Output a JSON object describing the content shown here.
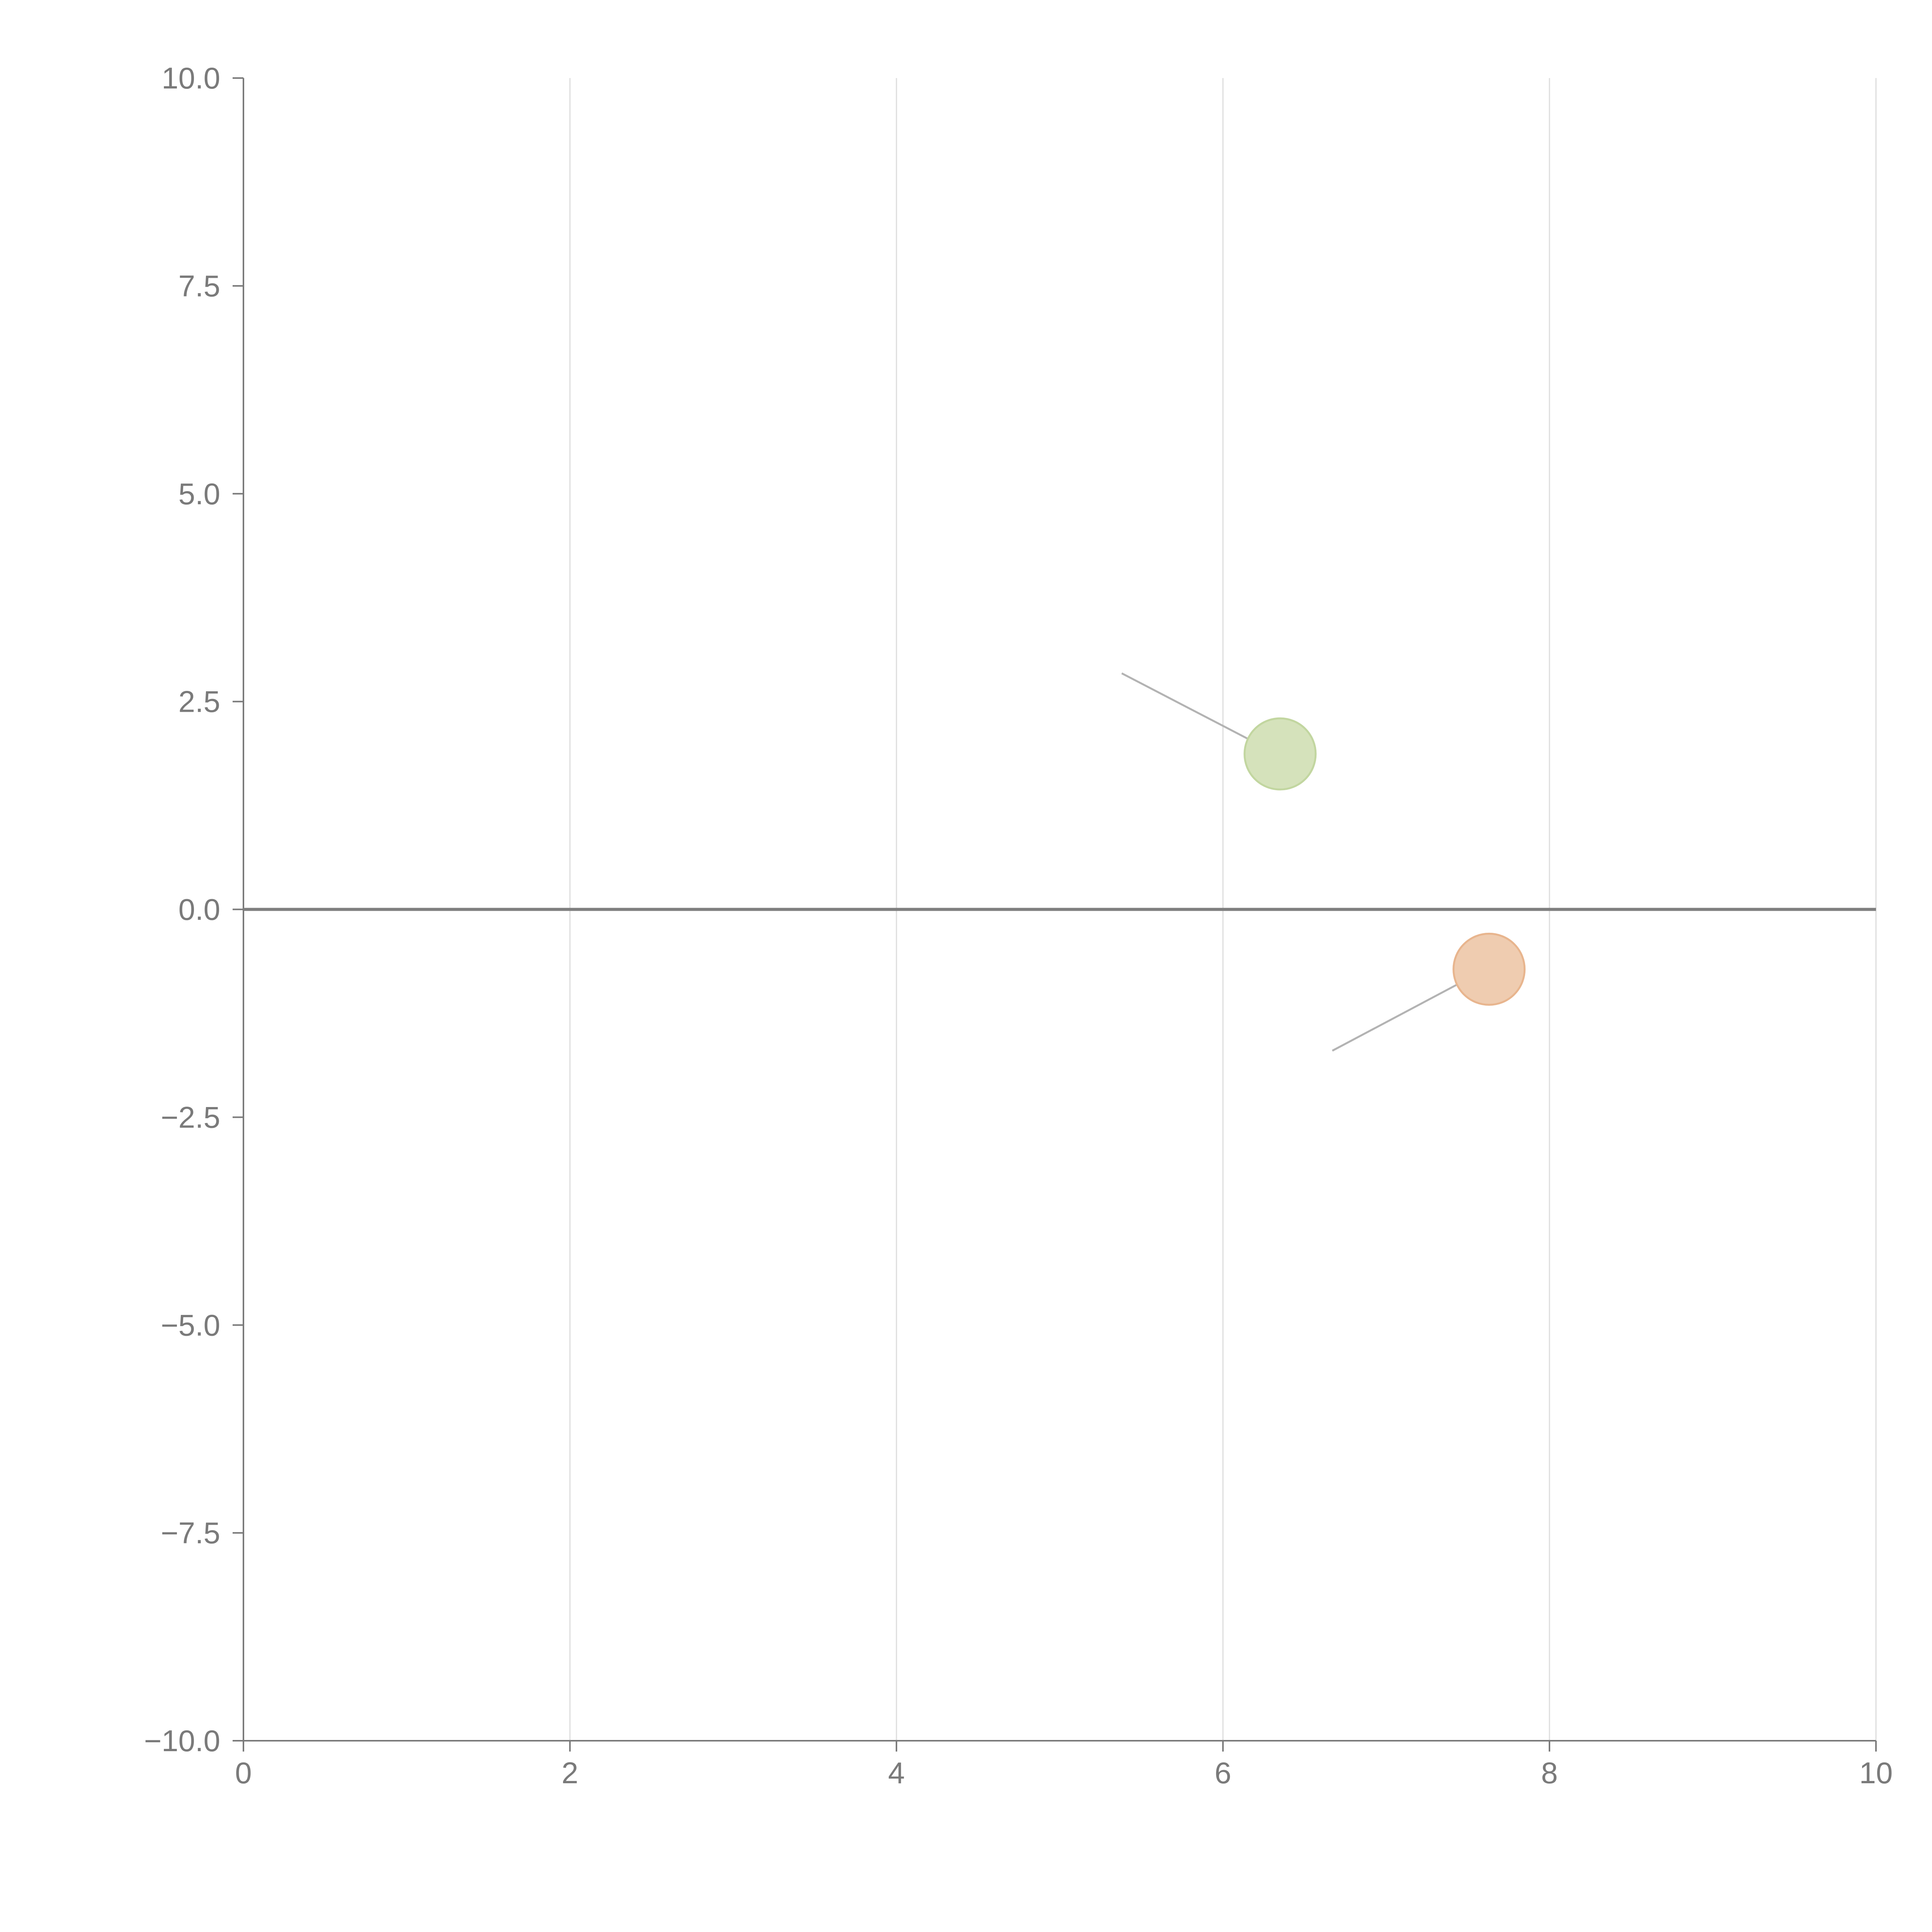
{
  "chart_data": {
    "type": "scatter",
    "title": "",
    "xlabel": "",
    "ylabel": "",
    "xlim": [
      0,
      10
    ],
    "ylim": [
      -10,
      10
    ],
    "x_ticks": [
      0,
      2,
      4,
      6,
      8,
      10
    ],
    "x_tick_labels": [
      "0",
      "2",
      "4",
      "6",
      "8",
      "10"
    ],
    "y_ticks": [
      10,
      7.5,
      5,
      2.5,
      0,
      -2.5,
      -5,
      -7.5,
      -10
    ],
    "y_tick_labels": [
      "10.0",
      "7.5",
      "5.0",
      "2.5",
      "0.0",
      "−2.5",
      "−5.0",
      "−7.5",
      "−10.0"
    ],
    "grid": {
      "vertical": true,
      "horizontal": false
    },
    "zero_line": true,
    "points": [
      {
        "x": 6.35,
        "y": 1.87,
        "tail": {
          "x": 5.38,
          "y": 2.84
        },
        "color": "#d5e2bb",
        "stroke": "#c2d6a0"
      },
      {
        "x": 7.63,
        "y": -0.72,
        "tail": {
          "x": 6.67,
          "y": -1.7
        },
        "color": "#efccb0",
        "stroke": "#e8b58e"
      }
    ],
    "colors": {
      "axis": "#7a7a7a",
      "grid": "#dddddd",
      "zero_line": "#7f7f7f",
      "connector": "#b3b3b3"
    }
  }
}
